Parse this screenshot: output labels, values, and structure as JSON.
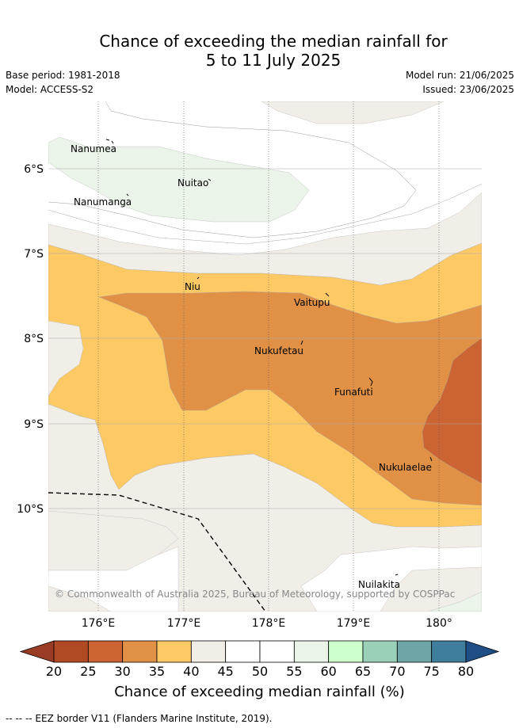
{
  "header": {
    "title_line1": "Chance of exceeding the median rainfall for",
    "title_line2": "5 to 11 July 2025",
    "base_period": "Base period: 1981-2018",
    "model": "Model: ACCESS-S2",
    "model_run": "Model run: 21/06/2025",
    "issued": "Issued: 23/06/2025"
  },
  "map": {
    "lat_labels": [
      "6°S",
      "7°S",
      "8°S",
      "9°S",
      "10°S"
    ],
    "lon_labels": [
      "176°E",
      "177°E",
      "178°E",
      "179°E",
      "180°"
    ],
    "places": [
      "Nanumea",
      "Nuitao",
      "Nanumanga",
      "Niu",
      "Vaitupu",
      "Nukufetau",
      "Funafuti",
      "Nukulaelae",
      "Nuilakita"
    ],
    "copyright": "© Commonwealth of Australia 2025, Bureau of Meteorology, supported by COSPPac"
  },
  "colorbar": {
    "ticks": [
      "20",
      "25",
      "30",
      "35",
      "40",
      "45",
      "50",
      "55",
      "60",
      "65",
      "70",
      "75",
      "80"
    ],
    "colors": [
      "#b04a25",
      "#cb6432",
      "#e09146",
      "#fdc965",
      "#f1ede7",
      "#ffffff",
      "#ffffff",
      "#eaf4e8",
      "#ccffcc",
      "#9bd0b8",
      "#6ea6a6",
      "#3e7d9b"
    ],
    "under_color": "#9a3b23",
    "over_color": "#1f4e86",
    "label": "Chance of exceeding median rainfall (%)"
  },
  "footer": {
    "eez_note": "-- -- -- EEZ border V11 (Flanders Marine Institute, 2019)."
  }
}
